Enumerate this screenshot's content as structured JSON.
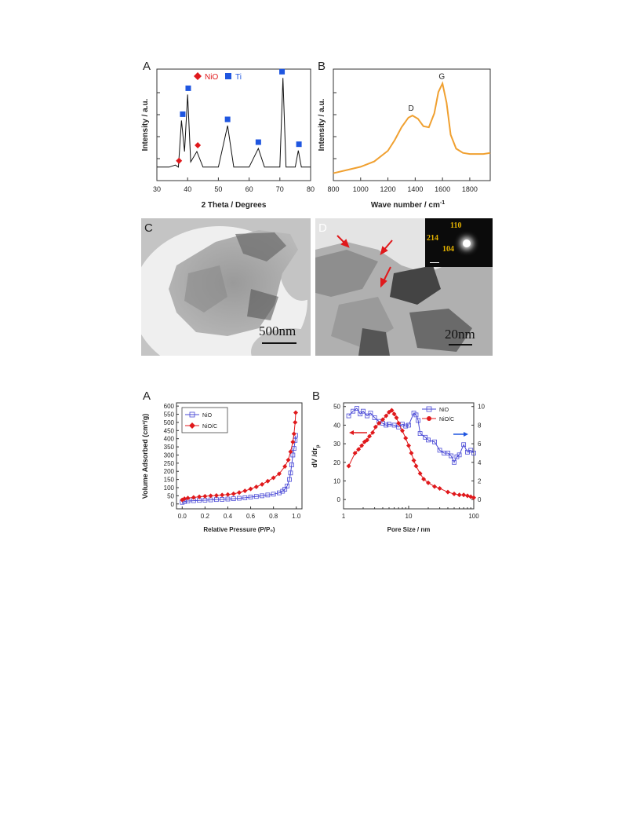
{
  "figure1": {
    "panel_a": {
      "letter": "A",
      "ylabel": "Intensity / a.u.",
      "xlabel": "2 Theta / Degrees",
      "xticks": [
        "30",
        "40",
        "50",
        "60",
        "70",
        "80"
      ],
      "legend": [
        {
          "name": "NiO",
          "color": "#e0191c",
          "marker": "diamond"
        },
        {
          "name": "Ti",
          "color": "#1f56e0",
          "marker": "square"
        }
      ]
    },
    "panel_b": {
      "letter": "B",
      "ylabel": "Intensity / a.u.",
      "xlabel": "Wave number / cm",
      "xlabel_sup": "-1",
      "xticks": [
        "800",
        "1000",
        "1200",
        "1400",
        "1600",
        "1800"
      ],
      "peak_d": "D",
      "peak_g": "G",
      "line_color": "#f0a030"
    },
    "panel_c": {
      "letter": "C",
      "scale_bar": "500nm"
    },
    "panel_d": {
      "letter": "D",
      "scale_bar": "20nm",
      "saed": [
        "110",
        "214",
        "104"
      ]
    }
  },
  "figure2": {
    "panel_a": {
      "letter": "A",
      "ylabel": "Volume Adsorbed (cm³/g)",
      "xlabel": "Relative Pressure  (P/P₀)",
      "xticks": [
        "0.0",
        "0.2",
        "0.4",
        "0.6",
        "0.8",
        "1.0"
      ],
      "yticks": [
        "0",
        "50",
        "100",
        "150",
        "200",
        "250",
        "300",
        "350",
        "400",
        "450",
        "500",
        "550",
        "600"
      ],
      "legend": [
        "NiO",
        "NiO/C"
      ]
    },
    "panel_b": {
      "letter": "B",
      "ylabel": "dV /dr",
      "ylabel_sub": "p",
      "xlabel": "Pore Size / nm",
      "xticks": [
        "1",
        "10",
        "100"
      ],
      "yticks_left": [
        "0",
        "10",
        "20",
        "30",
        "40",
        "50"
      ],
      "yticks_right": [
        "0",
        "2",
        "4",
        "6",
        "8",
        "10"
      ],
      "legend": [
        "NiO",
        "NiO/C"
      ]
    }
  },
  "chart_data": [
    {
      "type": "line",
      "xlabel": "2 Theta / Degrees",
      "ylabel": "Intensity / a.u.",
      "xlim": [
        30,
        80
      ],
      "series": [
        {
          "name": "",
          "x": [
            30,
            34,
            36,
            37,
            38,
            39,
            40,
            41,
            43,
            45,
            50,
            53,
            55,
            60,
            63,
            65,
            70,
            71,
            72,
            75,
            76,
            77,
            80
          ],
          "y": [
            0.1,
            0.1,
            0.12,
            0.1,
            0.55,
            0.25,
            0.8,
            0.15,
            0.25,
            0.1,
            0.1,
            0.5,
            0.1,
            0.1,
            0.28,
            0.1,
            0.1,
            0.96,
            0.1,
            0.1,
            0.26,
            0.1,
            0.1
          ]
        }
      ],
      "markers": [
        {
          "series": "NiO",
          "x": [
            37.2,
            43.3
          ]
        },
        {
          "series": "Ti",
          "x": [
            38.4,
            40.2,
            53.0,
            63.0,
            70.7,
            76.2
          ]
        }
      ]
    },
    {
      "type": "line",
      "xlabel": "Wave number / cm-1",
      "ylabel": "Intensity / a.u.",
      "xlim": [
        800,
        1950
      ],
      "series": [
        {
          "name": "",
          "x": [
            800,
            900,
            1000,
            1100,
            1200,
            1250,
            1300,
            1350,
            1380,
            1420,
            1460,
            1500,
            1540,
            1570,
            1600,
            1630,
            1660,
            1700,
            1750,
            1800,
            1900,
            1950
          ],
          "y": [
            0.04,
            0.07,
            0.1,
            0.15,
            0.25,
            0.35,
            0.47,
            0.56,
            0.58,
            0.55,
            0.48,
            0.47,
            0.6,
            0.8,
            0.88,
            0.7,
            0.4,
            0.27,
            0.23,
            0.22,
            0.22,
            0.23
          ]
        }
      ],
      "annotations": [
        {
          "text": "D",
          "x": 1370
        },
        {
          "text": "G",
          "x": 1595
        }
      ]
    },
    {
      "type": "line",
      "xlabel": "Relative Pressure  (P/P₀)",
      "ylabel": "Volume Adsorbed (cm³/g)",
      "xlim": [
        -0.05,
        1.05
      ],
      "ylim": [
        -30,
        620
      ],
      "series": [
        {
          "name": "NiO",
          "color": "#4a4ad6",
          "x": [
            0.0,
            0.02,
            0.05,
            0.1,
            0.15,
            0.2,
            0.25,
            0.3,
            0.35,
            0.4,
            0.45,
            0.5,
            0.55,
            0.6,
            0.65,
            0.7,
            0.75,
            0.8,
            0.85,
            0.88,
            0.9,
            0.92,
            0.94,
            0.95,
            0.96,
            0.97,
            0.98,
            0.99,
            0.995
          ],
          "y": [
            10,
            15,
            18,
            20,
            22,
            23,
            25,
            27,
            28,
            30,
            32,
            35,
            38,
            42,
            46,
            50,
            55,
            60,
            68,
            78,
            90,
            110,
            150,
            190,
            240,
            300,
            340,
            390,
            420
          ]
        },
        {
          "name": "NiO/C",
          "color": "#e0191c",
          "x": [
            0.0,
            0.02,
            0.05,
            0.1,
            0.15,
            0.2,
            0.25,
            0.3,
            0.35,
            0.4,
            0.45,
            0.5,
            0.55,
            0.6,
            0.65,
            0.7,
            0.75,
            0.8,
            0.85,
            0.9,
            0.93,
            0.95,
            0.97,
            0.98,
            0.99,
            0.995
          ],
          "y": [
            25,
            32,
            36,
            40,
            44,
            47,
            50,
            52,
            55,
            58,
            62,
            70,
            80,
            92,
            105,
            120,
            140,
            160,
            185,
            230,
            270,
            320,
            380,
            430,
            500,
            560
          ]
        }
      ]
    },
    {
      "type": "line",
      "xlabel": "Pore Size / nm",
      "ylabel": "dV /dr p",
      "xscale": "log",
      "xlim": [
        1,
        100
      ],
      "ylim_left": [
        -5,
        52
      ],
      "ylim_right": [
        -1,
        10.4
      ],
      "series": [
        {
          "name": "NiO",
          "axis": "right",
          "color": "#4a4ad6",
          "x": [
            1.2,
            1.4,
            1.6,
            1.8,
            2.0,
            2.3,
            2.6,
            3.0,
            3.5,
            4.0,
            4.5,
            5.0,
            6.0,
            7.0,
            8.0,
            9.0,
            10,
            12,
            13,
            14,
            15,
            18,
            20,
            25,
            30,
            35,
            40,
            45,
            50,
            55,
            60,
            70,
            80,
            90,
            100
          ],
          "y": [
            9.0,
            9.5,
            9.8,
            9.2,
            9.5,
            9.0,
            9.3,
            8.8,
            8.4,
            8.2,
            8.0,
            8.1,
            8.0,
            7.8,
            8.1,
            7.9,
            8.0,
            9.3,
            9.1,
            8.5,
            7.1,
            6.7,
            6.4,
            6.2,
            5.3,
            5.0,
            5.0,
            4.7,
            4.0,
            4.6,
            4.8,
            5.9,
            5.1,
            5.3,
            5.0
          ]
        },
        {
          "name": "NiO/C",
          "axis": "left",
          "color": "#e0191c",
          "x": [
            1.2,
            1.5,
            1.7,
            1.9,
            2.1,
            2.3,
            2.5,
            2.8,
            3.1,
            3.5,
            4.0,
            4.5,
            5.0,
            5.5,
            6.0,
            6.5,
            7.0,
            8.0,
            9.0,
            10,
            11,
            12,
            13,
            15,
            17,
            20,
            25,
            30,
            40,
            50,
            60,
            70,
            80,
            90,
            100
          ],
          "y": [
            18,
            25,
            27,
            29,
            31,
            32,
            34,
            36,
            39,
            41,
            43,
            45,
            47,
            48,
            46,
            44,
            41,
            37,
            33,
            29,
            25,
            21,
            18,
            14,
            11,
            9,
            7,
            6,
            4,
            3,
            2.5,
            2.5,
            2,
            1.5,
            1
          ]
        }
      ]
    }
  ]
}
